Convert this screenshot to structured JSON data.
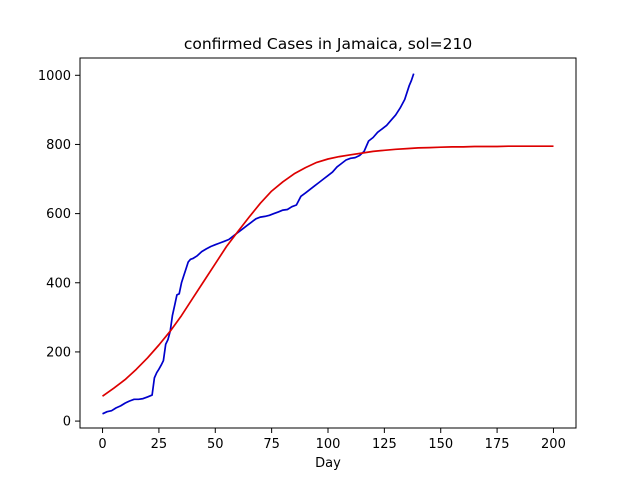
{
  "chart_data": {
    "type": "line",
    "title": "confirmed Cases in Jamaica, sol=210",
    "xlabel": "Day",
    "ylabel": "",
    "xlim": [
      -10,
      210
    ],
    "ylim": [
      -20,
      1050
    ],
    "xticks": [
      0,
      25,
      50,
      75,
      100,
      125,
      150,
      175,
      200
    ],
    "yticks": [
      0,
      200,
      400,
      600,
      800,
      1000
    ],
    "grid": false,
    "legend": "none",
    "series": [
      {
        "color": "#0000cc",
        "x": [
          0,
          2,
          4,
          6,
          8,
          10,
          12,
          14,
          16,
          18,
          20,
          22,
          23,
          24,
          25,
          26,
          27,
          28,
          29,
          30,
          31,
          32,
          33,
          34,
          35,
          36,
          37,
          38,
          39,
          40,
          42,
          44,
          46,
          48,
          50,
          52,
          54,
          56,
          58,
          60,
          62,
          64,
          66,
          68,
          70,
          72,
          74,
          76,
          78,
          80,
          82,
          84,
          86,
          88,
          90,
          92,
          94,
          96,
          98,
          100,
          102,
          104,
          106,
          108,
          110,
          112,
          114,
          116,
          118,
          120,
          122,
          124,
          126,
          128,
          130,
          132,
          134,
          136,
          137,
          138
        ],
        "y": [
          21,
          27,
          30,
          38,
          44,
          52,
          58,
          63,
          63,
          65,
          70,
          75,
          125,
          140,
          150,
          162,
          175,
          222,
          235,
          260,
          305,
          335,
          365,
          368,
          400,
          420,
          440,
          460,
          468,
          470,
          478,
          490,
          498,
          505,
          510,
          515,
          520,
          525,
          535,
          545,
          555,
          565,
          575,
          585,
          590,
          592,
          595,
          600,
          605,
          610,
          612,
          620,
          625,
          650,
          660,
          670,
          680,
          690,
          700,
          710,
          720,
          735,
          745,
          755,
          760,
          762,
          768,
          780,
          810,
          820,
          835,
          845,
          855,
          870,
          885,
          905,
          930,
          970,
          985,
          1005
        ]
      },
      {
        "color": "#dd0000",
        "x": [
          0,
          5,
          10,
          15,
          20,
          25,
          30,
          35,
          40,
          45,
          50,
          55,
          60,
          65,
          70,
          75,
          80,
          85,
          90,
          95,
          100,
          105,
          110,
          115,
          120,
          125,
          130,
          135,
          140,
          145,
          150,
          155,
          160,
          165,
          170,
          175,
          180,
          185,
          190,
          195,
          200
        ],
        "y": [
          72,
          95,
          120,
          150,
          183,
          220,
          260,
          305,
          355,
          405,
          455,
          505,
          548,
          590,
          630,
          665,
          692,
          715,
          733,
          748,
          758,
          765,
          770,
          775,
          780,
          783,
          786,
          788,
          790,
          791,
          792,
          793,
          793,
          794,
          794,
          794,
          795,
          795,
          795,
          795,
          795
        ]
      }
    ]
  }
}
